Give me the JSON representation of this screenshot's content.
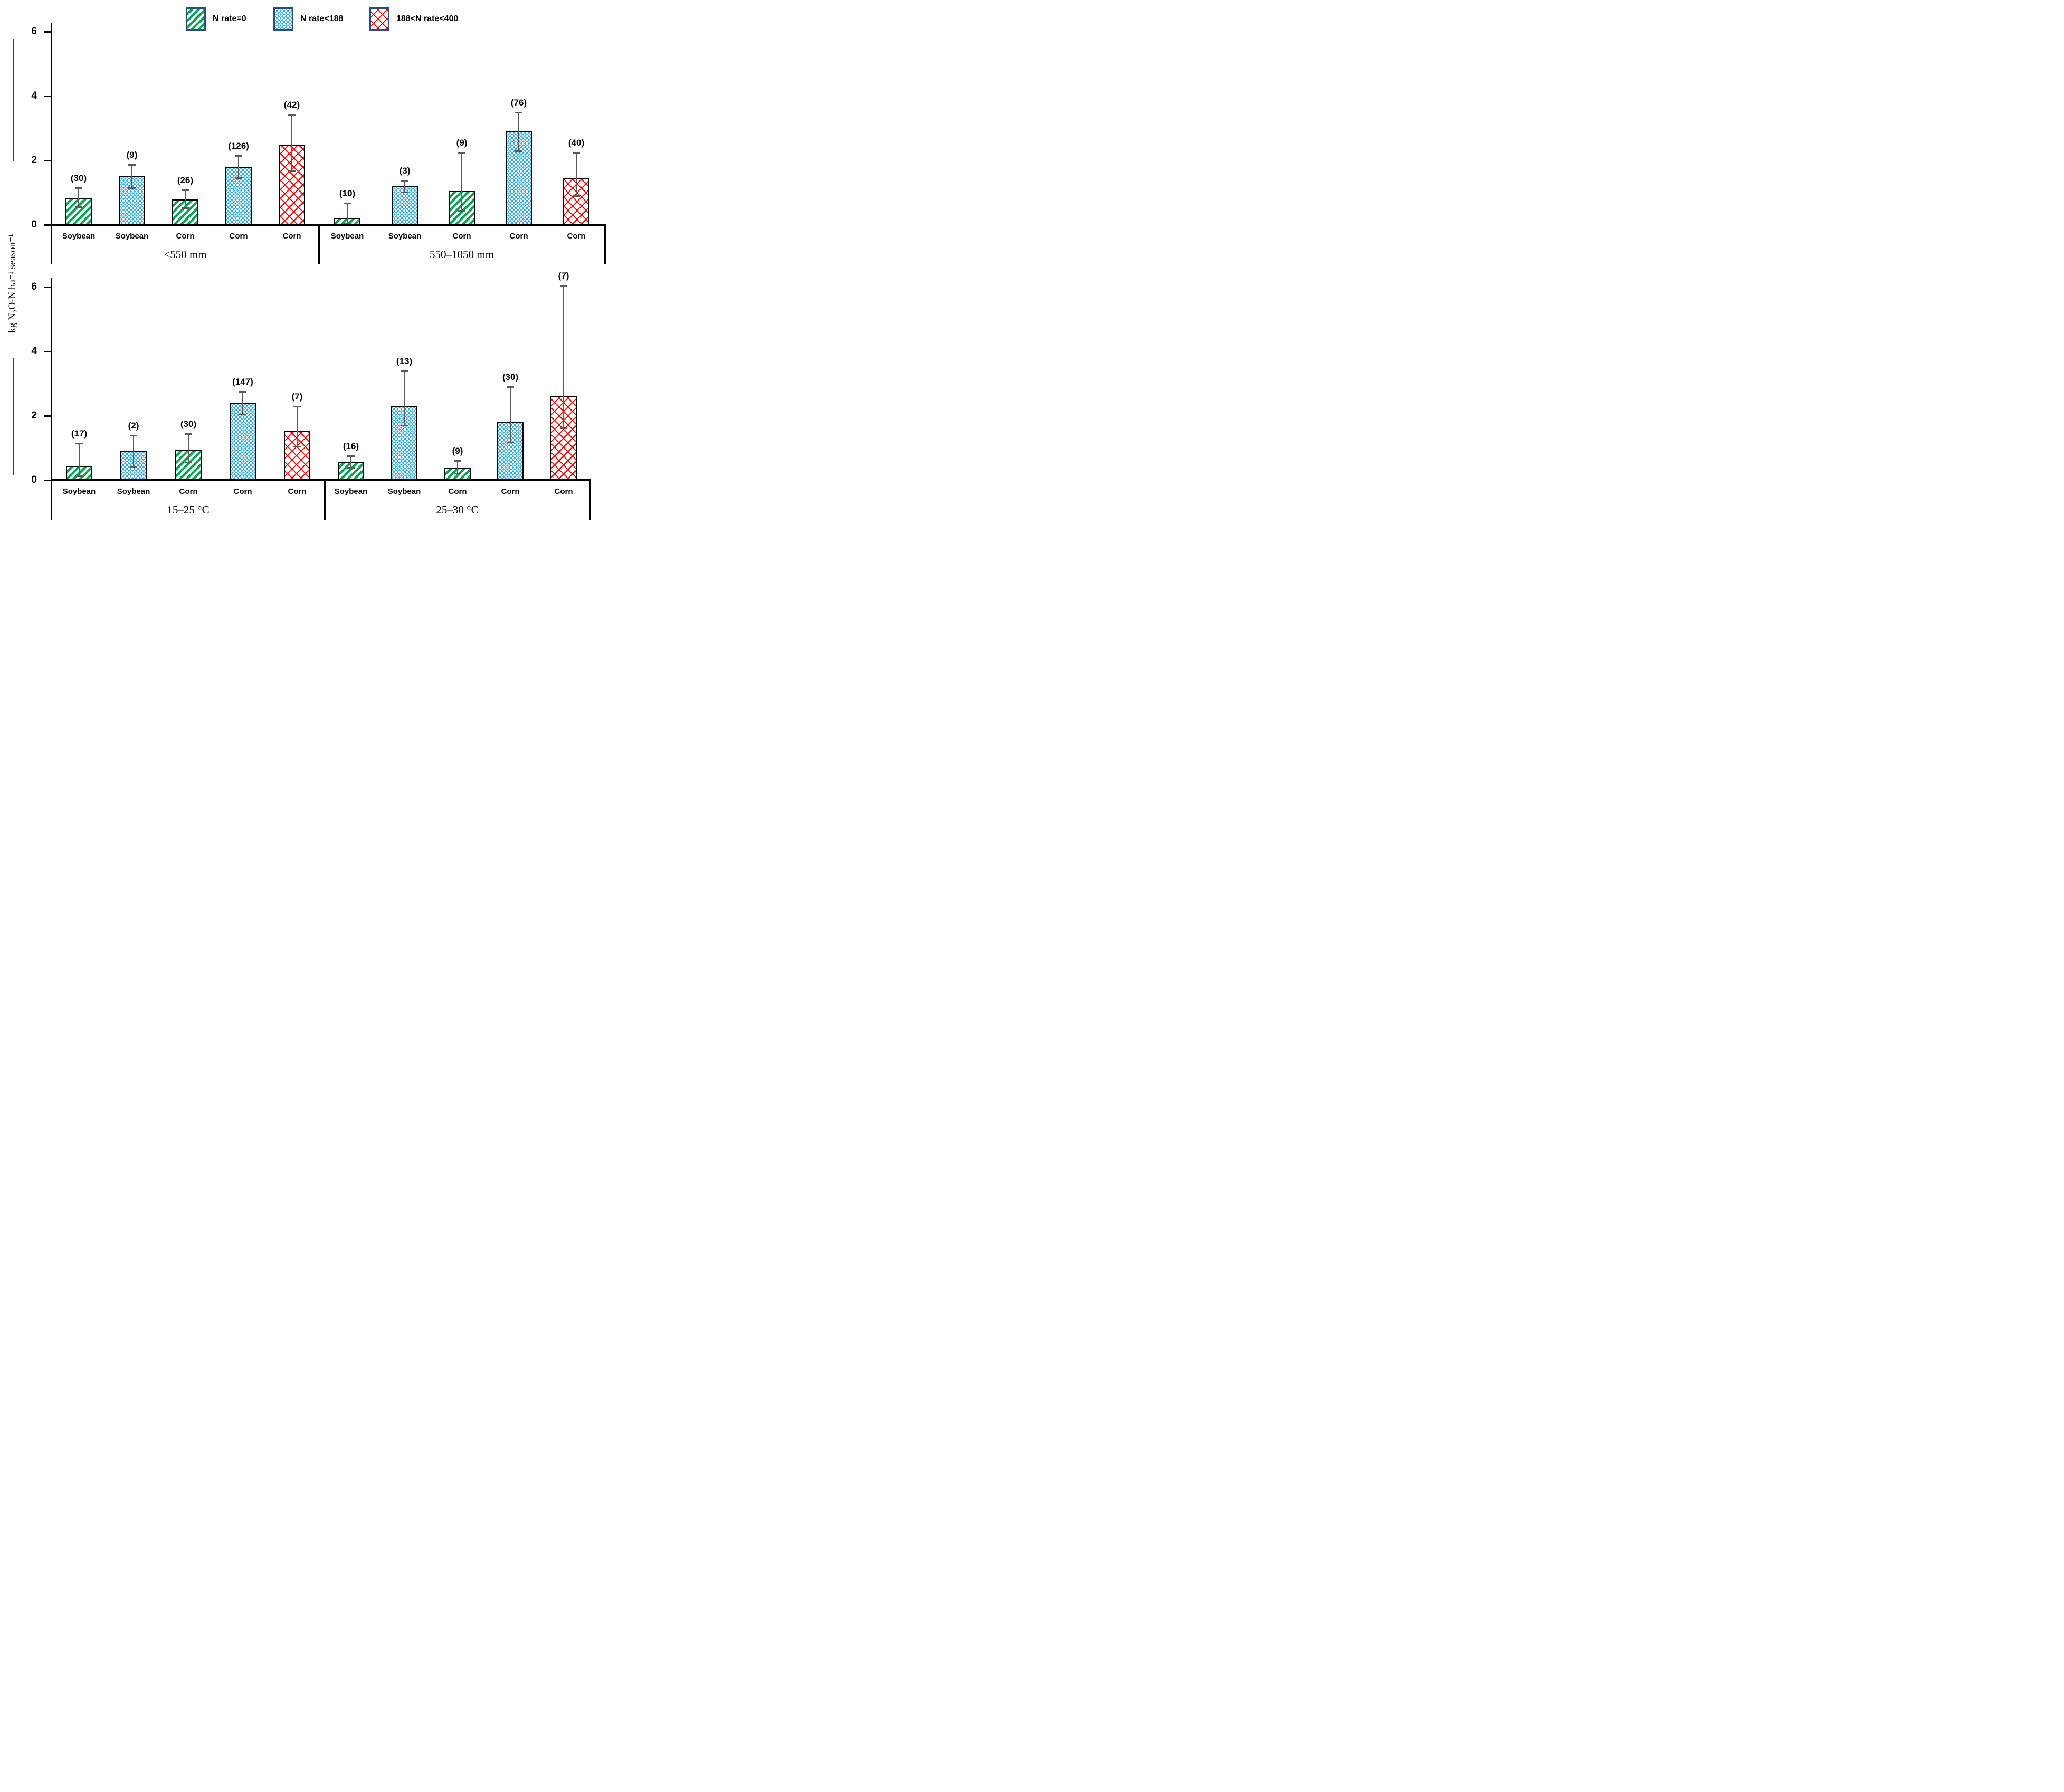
{
  "figure": {
    "y_axis_title": "kg N₂O-N ha⁻¹ season⁻¹"
  },
  "legend": {
    "items": [
      {
        "label": "N rate=0",
        "series": "n_zero"
      },
      {
        "label": "N rate<188",
        "series": "n_lt188"
      },
      {
        "label": "188<N rate<400",
        "series": "n_188_400"
      }
    ]
  },
  "colors": {
    "n_zero": "#00A651",
    "n_lt188": "#2EA8E0",
    "n_188_400": "#F40000",
    "error_bar": "#5a5a5a",
    "axis": "#000000",
    "legend_swatch_border": "#2E4B7E"
  },
  "chart_data": {
    "type": "bar",
    "title": "",
    "ylabel": "kg N2O-N ha-1 season-1",
    "yticks": [
      0,
      2,
      4,
      6
    ],
    "ylim": [
      0,
      6.28
    ],
    "grid": false,
    "legend_position": "top-center",
    "series_legend": [
      "N rate=0",
      "N rate<188",
      "188<N rate<400"
    ],
    "panels": [
      {
        "name": "precipitation-panel",
        "groups": [
          {
            "label": "<550 mm",
            "bars": [
              {
                "crop": "Soybean",
                "series": "n_zero",
                "n": 30,
                "value": 0.82,
                "err_low": 0.55,
                "err_high": 1.15
              },
              {
                "crop": "Soybean",
                "series": "n_lt188",
                "n": 9,
                "value": 1.53,
                "err_low": 1.14,
                "err_high": 1.87
              },
              {
                "crop": "Corn",
                "series": "n_zero",
                "n": 26,
                "value": 0.78,
                "err_low": 0.53,
                "err_high": 1.08
              },
              {
                "crop": "Corn",
                "series": "n_lt188",
                "n": 126,
                "value": 1.79,
                "err_low": 1.46,
                "err_high": 2.15
              },
              {
                "crop": "Corn",
                "series": "n_188_400",
                "n": 42,
                "value": 2.48,
                "err_low": 1.67,
                "err_high": 3.42
              }
            ]
          },
          {
            "label": "550–1050 mm",
            "bars": [
              {
                "crop": "Soybean",
                "series": "n_zero",
                "n": 10,
                "value": 0.22,
                "err_low": 0.05,
                "err_high": 0.68
              },
              {
                "crop": "Soybean",
                "series": "n_lt188",
                "n": 3,
                "value": 1.22,
                "err_low": 1.02,
                "err_high": 1.38
              },
              {
                "crop": "Corn",
                "series": "n_zero",
                "n": 9,
                "value": 1.05,
                "err_low": 0.45,
                "err_high": 2.25
              },
              {
                "crop": "Corn",
                "series": "n_lt188",
                "n": 76,
                "value": 2.9,
                "err_low": 2.3,
                "err_high": 3.5
              },
              {
                "crop": "Corn",
                "series": "n_188_400",
                "n": 40,
                "value": 1.45,
                "err_low": 0.9,
                "err_high": 2.25
              }
            ]
          }
        ]
      },
      {
        "name": "temperature-panel",
        "groups": [
          {
            "label": "15–25 °C",
            "bars": [
              {
                "crop": "Soybean",
                "series": "n_zero",
                "n": 17,
                "value": 0.45,
                "err_low": 0.13,
                "err_high": 1.15
              },
              {
                "crop": "Soybean",
                "series": "n_lt188",
                "n": 2,
                "value": 0.9,
                "err_low": 0.42,
                "err_high": 1.4
              },
              {
                "crop": "Corn",
                "series": "n_zero",
                "n": 30,
                "value": 0.95,
                "err_low": 0.56,
                "err_high": 1.45
              },
              {
                "crop": "Corn",
                "series": "n_lt188",
                "n": 147,
                "value": 2.4,
                "err_low": 2.05,
                "err_high": 2.75
              },
              {
                "crop": "Corn",
                "series": "n_188_400",
                "n": 7,
                "value": 1.52,
                "err_low": 1.05,
                "err_high": 2.3
              }
            ]
          },
          {
            "label": "25–30 °C",
            "bars": [
              {
                "crop": "Soybean",
                "series": "n_zero",
                "n": 16,
                "value": 0.58,
                "err_low": 0.4,
                "err_high": 0.75
              },
              {
                "crop": "Soybean",
                "series": "n_lt188",
                "n": 13,
                "value": 2.3,
                "err_low": 1.7,
                "err_high": 3.4
              },
              {
                "crop": "Corn",
                "series": "n_zero",
                "n": 9,
                "value": 0.37,
                "err_low": 0.21,
                "err_high": 0.6
              },
              {
                "crop": "Corn",
                "series": "n_lt188",
                "n": 30,
                "value": 1.8,
                "err_low": 1.18,
                "err_high": 2.9
              },
              {
                "crop": "Corn",
                "series": "n_188_400",
                "n": 7,
                "value": 2.6,
                "err_low": 1.62,
                "err_high": 6.05
              }
            ]
          }
        ]
      }
    ]
  }
}
